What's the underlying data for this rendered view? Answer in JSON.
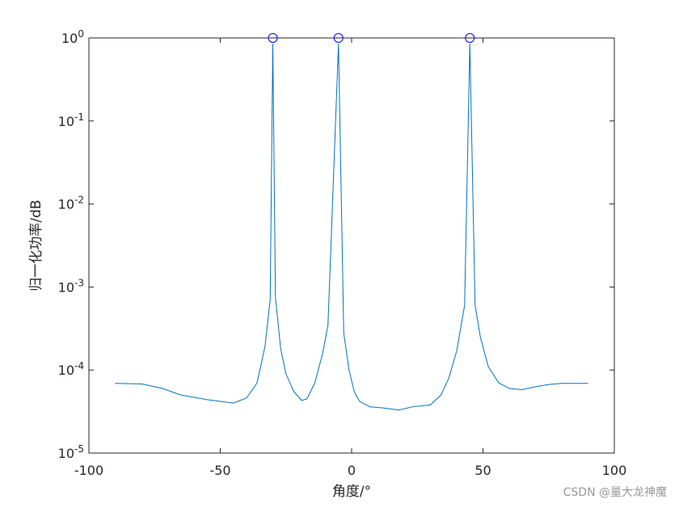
{
  "chart_data": {
    "type": "line",
    "xlabel": "角度/°",
    "ylabel": "归一化功率/dB",
    "watermark": "CSDN @量大龙神魔",
    "log_y": true,
    "x": [
      -90,
      -80,
      -72,
      -65,
      -55,
      -45,
      -40,
      -36,
      -33,
      -31,
      -30,
      -29,
      -27,
      -25,
      -22,
      -19,
      -17,
      -14,
      -11,
      -9,
      -5,
      -3,
      -1,
      1,
      3,
      7,
      12,
      18,
      23,
      30,
      34,
      37,
      40,
      43,
      45,
      47,
      49,
      52,
      56,
      60,
      65,
      70,
      75,
      80,
      90
    ],
    "series": [
      {
        "type": "line",
        "color": "#0072bd",
        "values": [
          6.9e-05,
          6.8e-05,
          6e-05,
          5e-05,
          4.4e-05,
          4e-05,
          4.6e-05,
          7e-05,
          0.00019,
          0.0007,
          0.85,
          0.00075,
          0.00018,
          9e-05,
          5.5e-05,
          4.3e-05,
          4.5e-05,
          7e-05,
          0.00016,
          0.00035,
          0.85,
          0.00028,
          0.0001,
          5.5e-05,
          4.2e-05,
          3.6e-05,
          3.5e-05,
          3.3e-05,
          3.6e-05,
          3.8e-05,
          5e-05,
          8e-05,
          0.00017,
          0.0006,
          0.85,
          0.0006,
          0.00025,
          0.00011,
          7e-05,
          6e-05,
          5.8e-05,
          6.3e-05,
          6.7e-05,
          6.9e-05,
          6.9e-05
        ]
      },
      {
        "type": "scatter",
        "color": "#0000ff",
        "x": [
          -30,
          -5,
          45
        ],
        "values": [
          1,
          1,
          1
        ]
      }
    ],
    "xlim": [
      -100,
      100
    ],
    "xticks": [
      -100,
      -50,
      0,
      50,
      100
    ],
    "ylim": [
      1e-05,
      1
    ],
    "yticks": [
      {
        "value": 1e-05,
        "label": "10^-5"
      },
      {
        "value": 0.0001,
        "label": "10^-4"
      },
      {
        "value": 0.001,
        "label": "10^-3"
      },
      {
        "value": 0.01,
        "label": "10^-2"
      },
      {
        "value": 0.1,
        "label": "10^-1"
      },
      {
        "value": 1,
        "label": "10^0"
      }
    ]
  }
}
